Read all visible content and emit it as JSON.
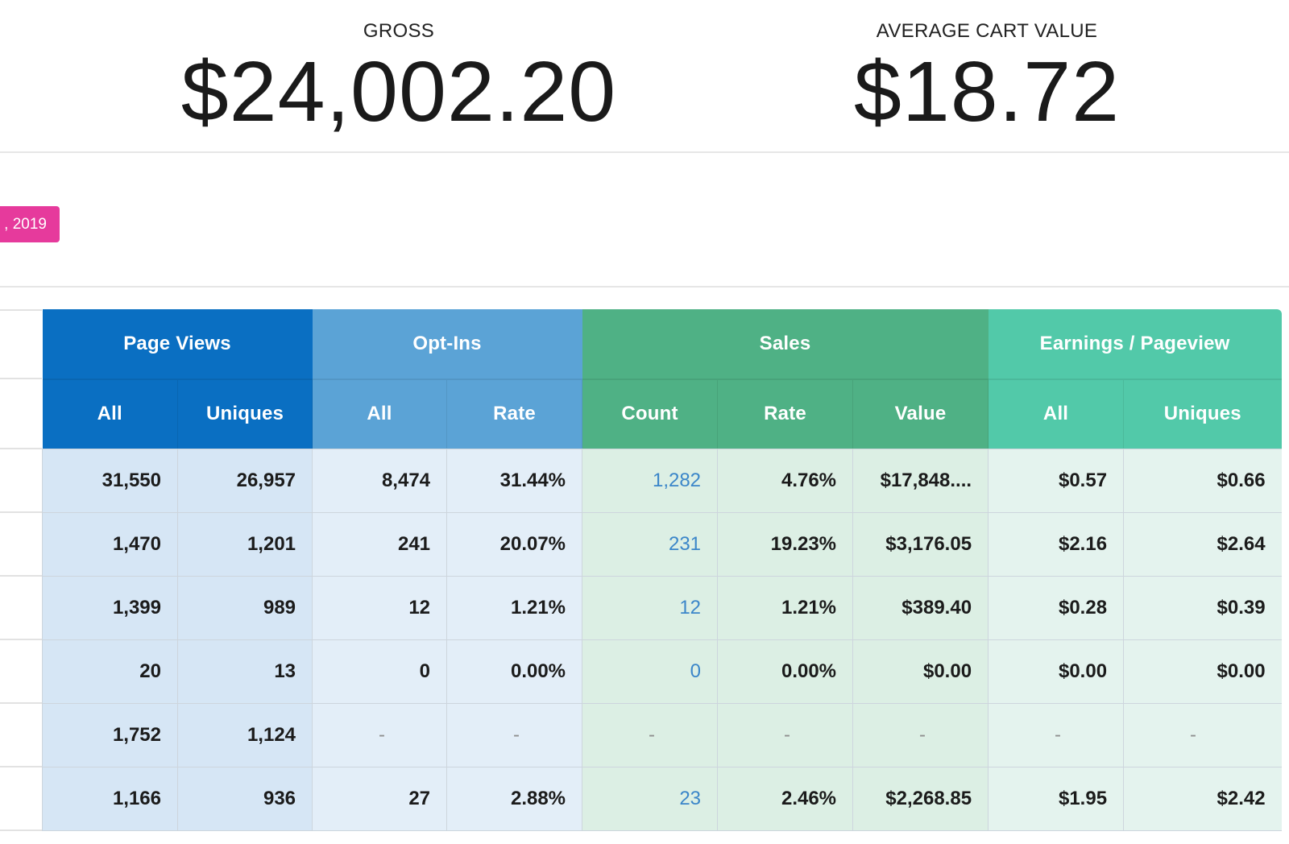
{
  "summary": {
    "gross_label": "GROSS",
    "gross_value": "$24,002.20",
    "acv_label": "AVERAGE CART VALUE",
    "acv_value": "$18.72"
  },
  "date_badge": ", 2019",
  "colors": {
    "badge": "#e63a9c",
    "page_views": "#0a6fc2",
    "opt_ins": "#5ba3d6",
    "sales": "#4fb185",
    "earnings": "#52c9a9",
    "link": "#3b86c9"
  },
  "table": {
    "groups": [
      "Page Views",
      "Opt-Ins",
      "Sales",
      "Earnings / Pageview"
    ],
    "columns": [
      "All",
      "Uniques",
      "All",
      "Rate",
      "Count",
      "Rate",
      "Value",
      "All",
      "Uniques"
    ],
    "rows": [
      [
        "31,550",
        "26,957",
        "8,474",
        "31.44%",
        "1,282",
        "4.76%",
        "$17,848....",
        "$0.57",
        "$0.66"
      ],
      [
        "1,470",
        "1,201",
        "241",
        "20.07%",
        "231",
        "19.23%",
        "$3,176.05",
        "$2.16",
        "$2.64"
      ],
      [
        "1,399",
        "989",
        "12",
        "1.21%",
        "12",
        "1.21%",
        "$389.40",
        "$0.28",
        "$0.39"
      ],
      [
        "20",
        "13",
        "0",
        "0.00%",
        "0",
        "0.00%",
        "$0.00",
        "$0.00",
        "$0.00"
      ],
      [
        "1,752",
        "1,124",
        "-",
        "-",
        "-",
        "-",
        "-",
        "-",
        "-"
      ],
      [
        "1,166",
        "936",
        "27",
        "2.88%",
        "23",
        "2.46%",
        "$2,268.85",
        "$1.95",
        "$2.42"
      ]
    ]
  }
}
